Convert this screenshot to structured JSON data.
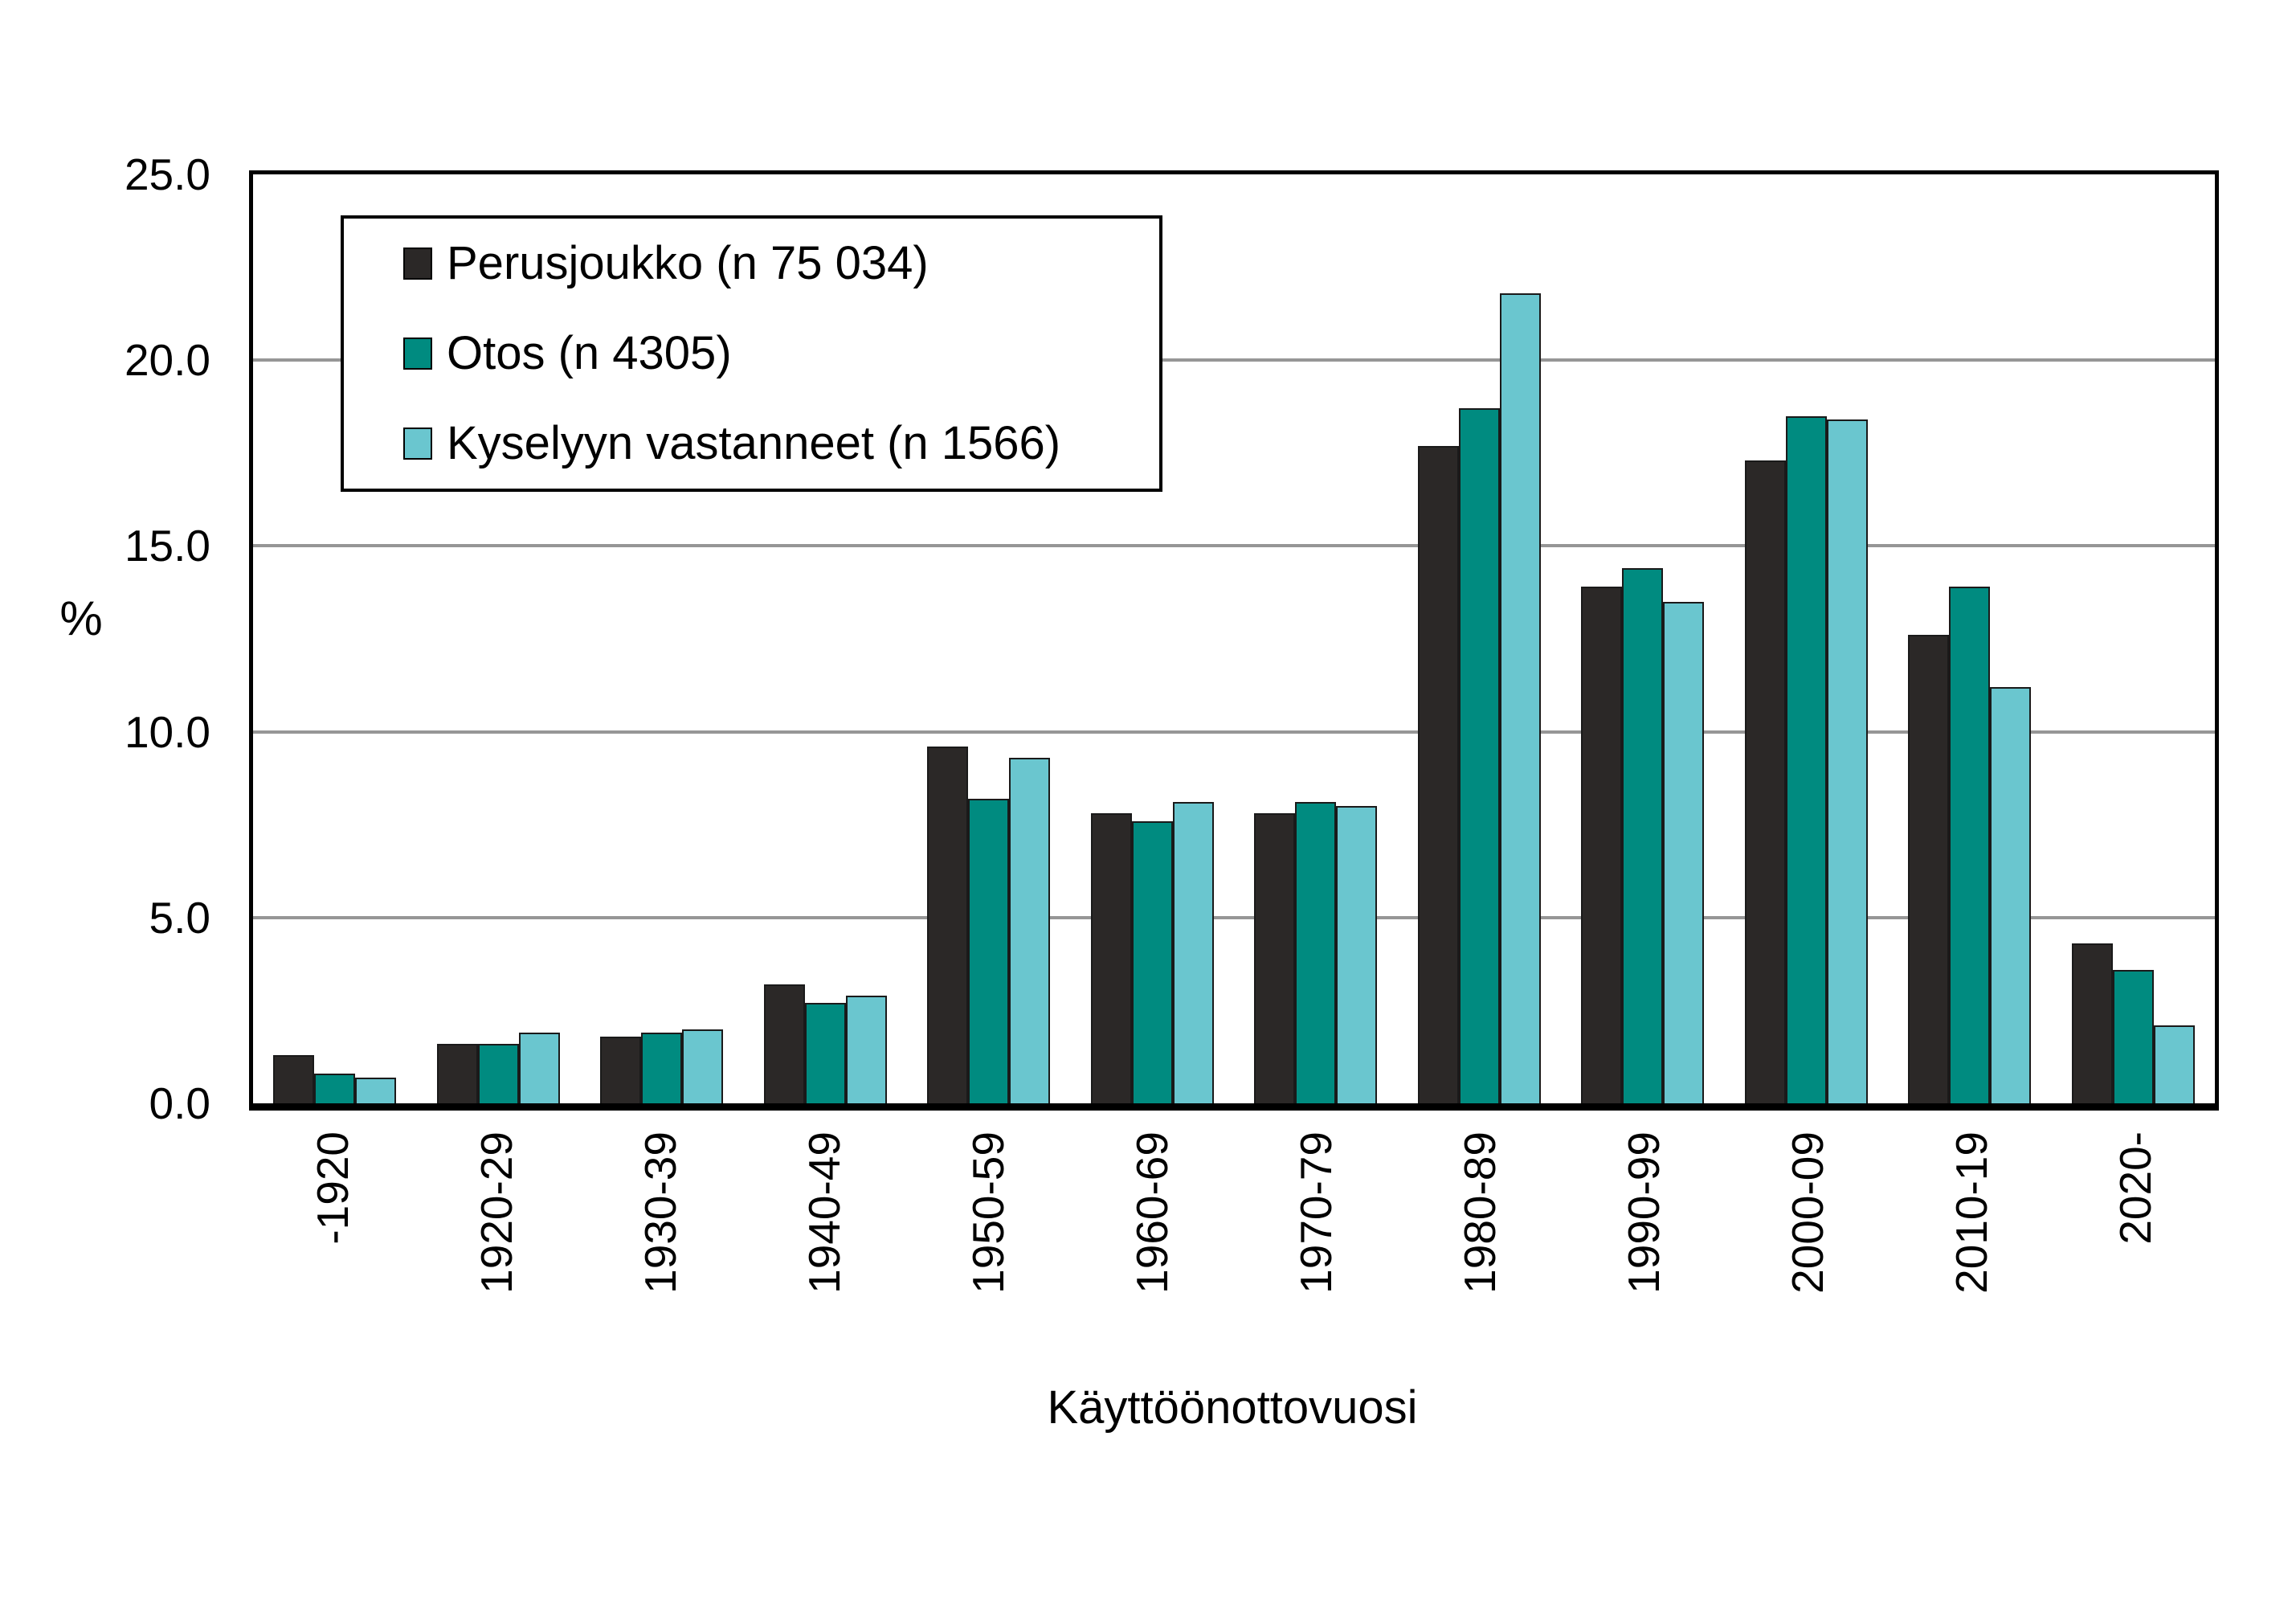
{
  "chart_data": {
    "type": "bar",
    "title": "",
    "xlabel": "Käyttöönottovuosi",
    "ylabel": "%",
    "ylim": [
      0,
      25
    ],
    "ytick_labels": [
      "0.0",
      "5.0",
      "10.0",
      "15.0",
      "20.0",
      "25.0"
    ],
    "grid": true,
    "legend_position": "upper-left-inside",
    "categories": [
      "-1920",
      "1920-29",
      "1930-39",
      "1940-49",
      "1950-59",
      "1960-69",
      "1970-79",
      "1980-89",
      "1990-99",
      "2000-09",
      "2010-19",
      "2020-"
    ],
    "series": [
      {
        "name": "Perusjoukko (n 75 034)",
        "color": "#2B2827",
        "values": [
          1.3,
          1.6,
          1.8,
          3.2,
          9.6,
          7.8,
          7.8,
          17.7,
          13.9,
          17.3,
          12.6,
          4.3
        ]
      },
      {
        "name": "Otos (n 4305)",
        "color": "#008B80",
        "values": [
          0.8,
          1.6,
          1.9,
          2.7,
          8.2,
          7.6,
          8.1,
          18.7,
          14.4,
          18.5,
          13.9,
          3.6
        ]
      },
      {
        "name": "Kyselyyn vastanneet (n 1566)",
        "color": "#6AC6CF",
        "values": [
          0.7,
          1.9,
          2.0,
          2.9,
          9.3,
          8.1,
          8.0,
          21.8,
          13.5,
          18.4,
          11.2,
          2.1
        ]
      }
    ],
    "colors": {
      "gridline": "#969696",
      "axis": "#000000",
      "bar_outline": "#1a1a1a"
    }
  }
}
